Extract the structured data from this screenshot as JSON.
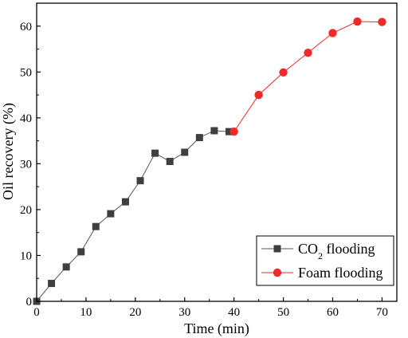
{
  "chart_data": {
    "type": "line",
    "xlabel": "Time (min)",
    "ylabel": "Oil recovery (%)",
    "xlim": [
      0,
      73
    ],
    "ylim": [
      0,
      65
    ],
    "xticks": [
      0,
      10,
      20,
      30,
      40,
      50,
      60,
      70
    ],
    "yticks": [
      0,
      10,
      20,
      30,
      40,
      50,
      60
    ],
    "grid": false,
    "legend_position": "bottom-right",
    "series": [
      {
        "name": "CO",
        "name_subscript": "2",
        "name_suffix": " flooding",
        "marker": "square",
        "color": "#3f3f3f",
        "line_color": "#555555",
        "x": [
          0,
          3,
          6,
          9,
          12,
          15,
          18,
          21,
          24,
          27,
          30,
          33,
          36,
          39
        ],
        "y": [
          0,
          3.9,
          7.5,
          10.8,
          16.3,
          19.1,
          21.7,
          26.3,
          32.3,
          30.5,
          32.5,
          35.7,
          37.2,
          37.0
        ]
      },
      {
        "name": "Foam flooding",
        "marker": "circle",
        "color": "#ee2a2a",
        "line_color": "#ee2a2a",
        "x": [
          40,
          45,
          50,
          55,
          60,
          65,
          70
        ],
        "y": [
          37.0,
          45.0,
          49.9,
          54.2,
          58.5,
          61.0,
          60.9
        ]
      }
    ]
  }
}
